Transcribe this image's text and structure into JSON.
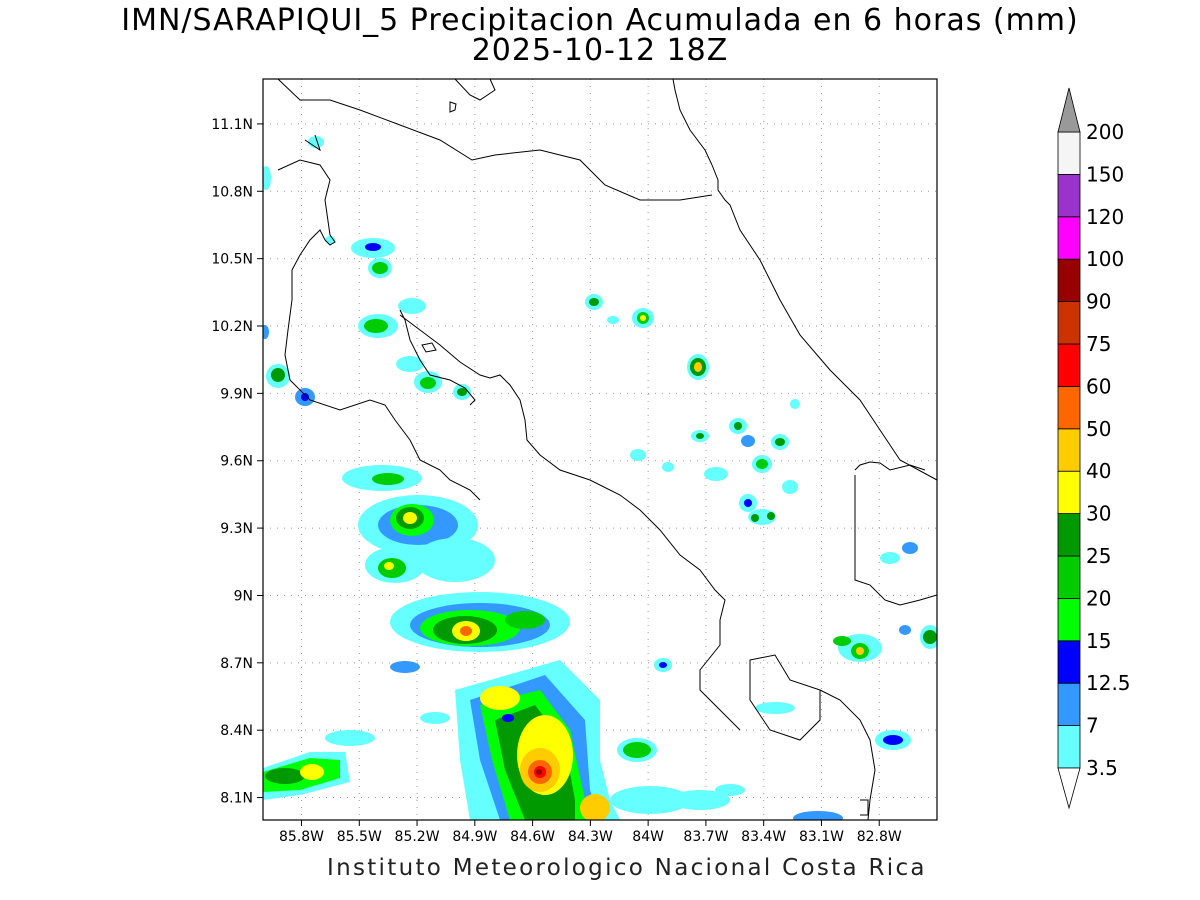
{
  "title": {
    "line1": "IMN/SARAPIQUI_5 Precipitacion Acumulada en 6 horas (mm)",
    "line2": "2025-10-12 18Z"
  },
  "footer": "Instituto Meteorologico Nacional Costa Rica",
  "map": {
    "lon_range": [
      -86.0,
      -82.5
    ],
    "lat_range": [
      8.0,
      11.3
    ],
    "lat_ticks": [
      "11.1N",
      "10.8N",
      "10.5N",
      "10.2N",
      "9.9N",
      "9.6N",
      "9.3N",
      "9N",
      "8.7N",
      "8.4N",
      "8.1N"
    ],
    "lat_values": [
      11.1,
      10.8,
      10.5,
      10.2,
      9.9,
      9.6,
      9.3,
      9.0,
      8.7,
      8.4,
      8.1
    ],
    "lon_ticks": [
      "85.8W",
      "85.5W",
      "85.2W",
      "84.9W",
      "84.6W",
      "84.3W",
      "84W",
      "83.7W",
      "83.4W",
      "83.1W",
      "82.8W"
    ],
    "lon_values": [
      -85.8,
      -85.5,
      -85.2,
      -84.9,
      -84.6,
      -84.3,
      -84.0,
      -83.7,
      -83.4,
      -83.1,
      -82.8
    ],
    "grid": true
  },
  "colorbar": {
    "levels": [
      "3.5",
      "7",
      "12.5",
      "15",
      "20",
      "25",
      "30",
      "40",
      "50",
      "60",
      "75",
      "90",
      "100",
      "120",
      "150",
      "200"
    ],
    "colors": [
      "#66ffff",
      "#3399ff",
      "#0000ff",
      "#00ff00",
      "#00cc00",
      "#009900",
      "#ffff00",
      "#ffcc00",
      "#ff6600",
      "#ff0000",
      "#cc3300",
      "#990000",
      "#ff00ff",
      "#9933cc",
      "#f5f5f5",
      "#999999"
    ]
  }
}
